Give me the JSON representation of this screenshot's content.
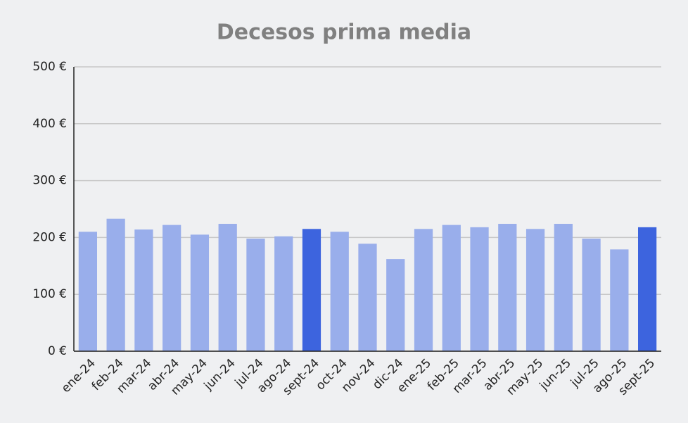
{
  "chart_data": {
    "type": "bar",
    "title": "Decesos prima media",
    "categories": [
      "ene-24",
      "feb-24",
      "mar-24",
      "abr-24",
      "may-24",
      "jun-24",
      "jul-24",
      "ago-24",
      "sept-24",
      "oct-24",
      "nov-24",
      "dic-24",
      "ene-25",
      "feb-25",
      "mar-25",
      "abr-25",
      "may-25",
      "jun-25",
      "jul-25",
      "ago-25",
      "sept-25"
    ],
    "values": [
      210,
      233,
      214,
      222,
      205,
      224,
      198,
      202,
      215,
      210,
      189,
      162,
      215,
      222,
      218,
      224,
      215,
      224,
      198,
      179,
      218
    ],
    "colors": [
      "#99aeeb",
      "#99aeeb",
      "#99aeeb",
      "#99aeeb",
      "#99aeeb",
      "#99aeeb",
      "#99aeeb",
      "#99aeeb",
      "#3d64de",
      "#99aeeb",
      "#99aeeb",
      "#99aeeb",
      "#99aeeb",
      "#99aeeb",
      "#99aeeb",
      "#99aeeb",
      "#99aeeb",
      "#99aeeb",
      "#99aeeb",
      "#99aeeb",
      "#3d64de"
    ],
    "ylim": [
      0,
      500
    ],
    "yticks": [
      {
        "value": 0,
        "label": "0 €"
      },
      {
        "value": 100,
        "label": "100 €"
      },
      {
        "value": 200,
        "label": "200 €"
      },
      {
        "value": 300,
        "label": "300 €"
      },
      {
        "value": 400,
        "label": "400 €"
      },
      {
        "value": 500,
        "label": "500 €"
      }
    ],
    "grid": true
  }
}
